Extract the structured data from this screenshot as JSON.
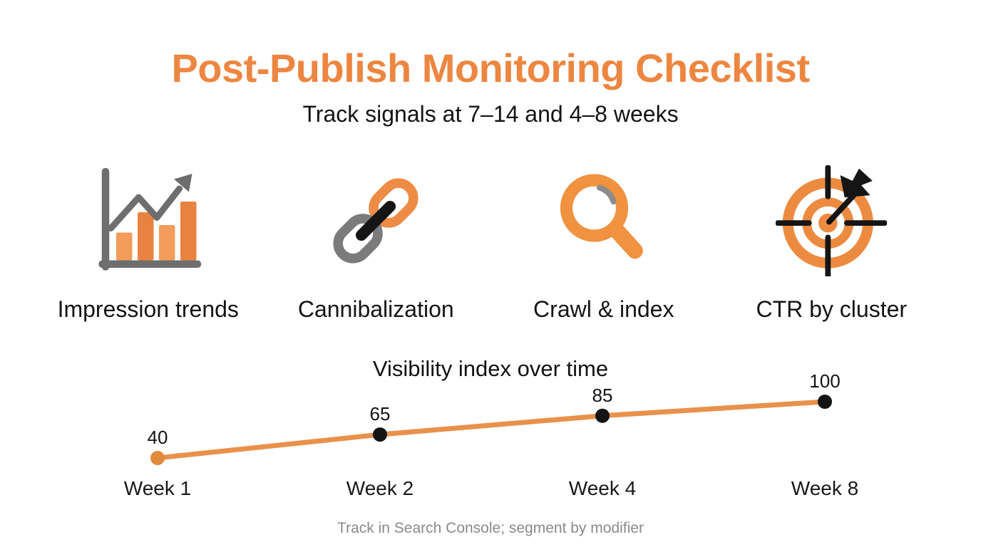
{
  "header": {
    "title": "Post-Publish Monitoring Checklist",
    "subtitle": "Track signals at 7–14 and 4–8 weeks"
  },
  "checklist": {
    "items": [
      {
        "label": "Impression trends",
        "icon": "bar-chart-trend-icon"
      },
      {
        "label": "Cannibalization",
        "icon": "chain-links-icon"
      },
      {
        "label": "Crawl & index",
        "icon": "magnifying-glass-icon"
      },
      {
        "label": "CTR by cluster",
        "icon": "target-arrow-icon"
      }
    ]
  },
  "chart_data": {
    "type": "line",
    "title": "Visibility index over time",
    "categories": [
      "Week 1",
      "Week 2",
      "Week 4",
      "Week 8"
    ],
    "series": [
      {
        "name": "Visibility index",
        "values": [
          40,
          65,
          85,
          100
        ]
      }
    ],
    "data_labels": [
      "40",
      "65",
      "85",
      "100"
    ],
    "xlabel": "",
    "ylabel": "",
    "ylim": [
      40,
      100
    ],
    "grid": false,
    "legend": "none",
    "line_color": "#E9914B",
    "point_colors": [
      "#E08A3C",
      "#141414",
      "#141414",
      "#141414"
    ]
  },
  "footer": {
    "note": "Track in Search Console; segment by modifier"
  },
  "colors": {
    "accent_orange": "#ED8640",
    "icon_orange": "#EE8B45",
    "icon_orange_light": "#F49C5B",
    "icon_gray": "#6E6E6E",
    "text_black": "#141414",
    "muted_gray": "#8A8A8A",
    "background": "#FFFFFF"
  }
}
